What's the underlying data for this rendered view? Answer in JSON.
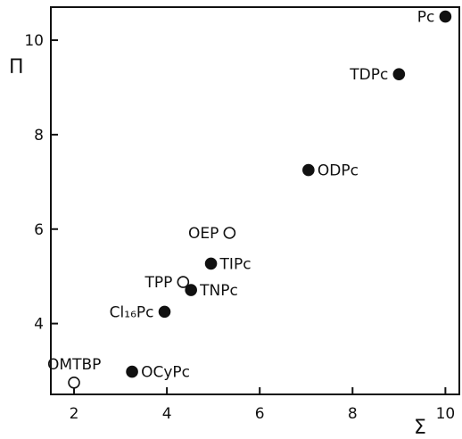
{
  "chart_data": {
    "type": "scatter",
    "title": "",
    "xlabel": "Σ",
    "ylabel": "Π",
    "xlim": [
      1.5,
      10.3
    ],
    "ylim": [
      2.5,
      10.7
    ],
    "xticks": [
      2,
      4,
      6,
      8,
      10
    ],
    "yticks": [
      4,
      6,
      8,
      10
    ],
    "xtick_labels": [
      "2",
      "4",
      "6",
      "8",
      "10"
    ],
    "ytick_labels": [
      "4",
      "6",
      "8",
      "10"
    ],
    "grid": false,
    "legend": "none",
    "marker_color": "#111111",
    "points": [
      {
        "label": "Pc",
        "x": 10.0,
        "y": 10.5,
        "filled": true,
        "label_side": "left"
      },
      {
        "label": "TDPc",
        "x": 9.0,
        "y": 9.28,
        "filled": true,
        "label_side": "left"
      },
      {
        "label": "ODPc",
        "x": 7.05,
        "y": 7.25,
        "filled": true,
        "label_side": "right"
      },
      {
        "label": "OEP",
        "x": 5.35,
        "y": 5.92,
        "filled": false,
        "label_side": "left"
      },
      {
        "label": "TIPc",
        "x": 4.95,
        "y": 5.27,
        "filled": true,
        "label_side": "right"
      },
      {
        "label": "TPP",
        "x": 4.35,
        "y": 4.88,
        "filled": false,
        "label_side": "left"
      },
      {
        "label": "TNPc",
        "x": 4.52,
        "y": 4.71,
        "filled": true,
        "label_side": "right"
      },
      {
        "label": "Cl₁₆Pc",
        "x": 3.95,
        "y": 4.25,
        "filled": true,
        "label_side": "left"
      },
      {
        "label": "OCyPc",
        "x": 3.25,
        "y": 2.98,
        "filled": true,
        "label_side": "right"
      },
      {
        "label": "OMTBP",
        "x": 2.0,
        "y": 2.75,
        "filled": false,
        "label_side": "above"
      }
    ]
  }
}
